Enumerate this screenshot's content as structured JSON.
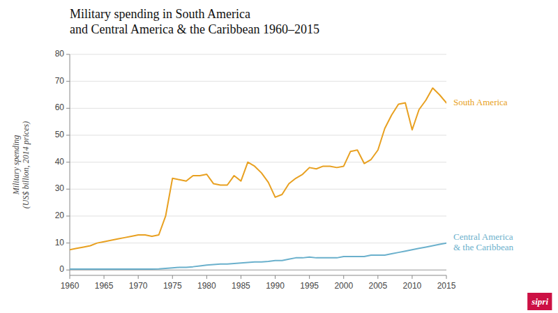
{
  "chart_data": {
    "type": "line",
    "title": "Military spending in South America\nand Central America & the Caribbean 1960–2015",
    "y_label": "Military spending\n(US$ billion, 2014 prices)",
    "x": [
      1960,
      1961,
      1962,
      1963,
      1964,
      1965,
      1966,
      1967,
      1968,
      1969,
      1970,
      1971,
      1972,
      1973,
      1974,
      1975,
      1976,
      1977,
      1978,
      1979,
      1980,
      1981,
      1982,
      1983,
      1984,
      1985,
      1986,
      1987,
      1988,
      1989,
      1990,
      1991,
      1992,
      1993,
      1994,
      1995,
      1996,
      1997,
      1998,
      1999,
      2000,
      2001,
      2002,
      2003,
      2004,
      2005,
      2006,
      2007,
      2008,
      2009,
      2010,
      2011,
      2012,
      2013,
      2014,
      2015
    ],
    "series": [
      {
        "name": "South America",
        "color": "#e8a020",
        "values": [
          7.5,
          8.0,
          8.5,
          9.0,
          10.0,
          10.5,
          11.0,
          11.5,
          12.0,
          12.5,
          13.0,
          13.0,
          12.5,
          13.0,
          20.0,
          34.0,
          33.5,
          33.0,
          35.0,
          35.0,
          35.5,
          32.0,
          31.5,
          31.5,
          35.0,
          33.0,
          40.0,
          38.5,
          36.0,
          32.5,
          27.0,
          28.0,
          32.0,
          34.0,
          35.5,
          38.0,
          37.5,
          38.5,
          38.5,
          38.0,
          38.5,
          44.0,
          44.5,
          39.5,
          41.0,
          44.5,
          52.5,
          57.5,
          61.5,
          62.0,
          52.0,
          59.5,
          63.0,
          67.5,
          65.0,
          62.0
        ]
      },
      {
        "name": "Central America\n& the Caribbean",
        "color": "#6ab0cc",
        "values": [
          0.3,
          0.3,
          0.3,
          0.3,
          0.3,
          0.3,
          0.3,
          0.3,
          0.3,
          0.3,
          0.3,
          0.3,
          0.3,
          0.4,
          0.6,
          0.8,
          1.0,
          1.0,
          1.2,
          1.5,
          1.8,
          2.0,
          2.2,
          2.2,
          2.4,
          2.6,
          2.8,
          3.0,
          3.0,
          3.2,
          3.5,
          3.5,
          4.0,
          4.5,
          4.5,
          4.8,
          4.5,
          4.5,
          4.5,
          4.5,
          5.0,
          5.0,
          5.0,
          5.0,
          5.5,
          5.5,
          5.5,
          6.0,
          6.5,
          7.0,
          7.5,
          8.0,
          8.5,
          9.0,
          9.5,
          10.0
        ]
      }
    ],
    "xlim": [
      1960,
      2015
    ],
    "xticks": [
      1960,
      1965,
      1970,
      1975,
      1980,
      1985,
      1990,
      1995,
      2000,
      2005,
      2010,
      2015
    ],
    "ylim": [
      -2,
      80
    ],
    "yticks": [
      0,
      10,
      20,
      30,
      40,
      50,
      60,
      70,
      80
    ],
    "grid": true,
    "annotations": [
      {
        "text": "sipri",
        "color": "#cc1044"
      }
    ]
  }
}
